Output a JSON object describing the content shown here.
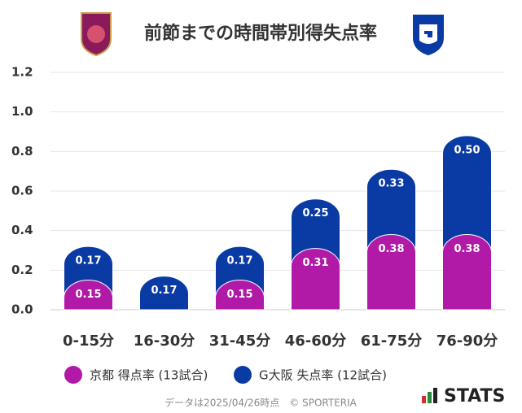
{
  "chart_data": {
    "type": "stacked-bar",
    "title": "前節までの時間帯別得失点率",
    "categories": [
      "0-15分",
      "16-30分",
      "31-45分",
      "46-60分",
      "61-75分",
      "76-90分"
    ],
    "series": [
      {
        "name": "京都 得点率 (13試合)",
        "color": "#b01aa7",
        "values": [
          0.15,
          null,
          0.15,
          0.31,
          0.38,
          0.38
        ],
        "value_labels": [
          "0.15",
          null,
          "0.15",
          "0.31",
          "0.38",
          "0.38"
        ]
      },
      {
        "name": "G大阪 失点率 (12試合)",
        "color": "#0a3aa3",
        "values": [
          0.17,
          0.17,
          0.17,
          0.25,
          0.33,
          0.5
        ],
        "value_labels": [
          "0.17",
          "0.17",
          "0.17",
          "0.25",
          "0.33",
          "0.50"
        ]
      }
    ],
    "ylim": [
      0,
      1.2
    ],
    "yticks": [
      {
        "value": 0,
        "label": "0.0"
      },
      0.2,
      0.4,
      0.6,
      0.8,
      {
        "value": 1,
        "label": "1.0"
      },
      1.2
    ],
    "grid": true,
    "footnote": "データは2025/04/26時点　© SPORTERIA",
    "brand": "STATS"
  }
}
